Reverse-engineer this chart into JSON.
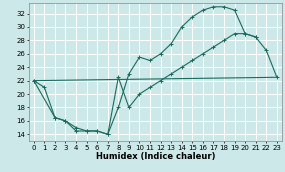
{
  "xlabel": "Humidex (Indice chaleur)",
  "bg_color": "#cce8e8",
  "line_color": "#1a6b5e",
  "grid_color": "#ffffff",
  "xlim": [
    -0.5,
    23.5
  ],
  "ylim": [
    13.0,
    33.5
  ],
  "yticks": [
    14,
    16,
    18,
    20,
    22,
    24,
    26,
    28,
    30,
    32
  ],
  "xticks": [
    0,
    1,
    2,
    3,
    4,
    5,
    6,
    7,
    8,
    9,
    10,
    11,
    12,
    13,
    14,
    15,
    16,
    17,
    18,
    19,
    20,
    21,
    22,
    23
  ],
  "line1_x": [
    0,
    1,
    2,
    3,
    4,
    5,
    6,
    7,
    8,
    9,
    10,
    11,
    12,
    13,
    14,
    15,
    16,
    17,
    18,
    19,
    20,
    21
  ],
  "line1_y": [
    22,
    21,
    16.5,
    16.0,
    14.5,
    14.5,
    14.5,
    14.0,
    18.0,
    23.0,
    25.5,
    25.0,
    26.0,
    27.5,
    30.0,
    31.5,
    32.5,
    33.0,
    33.0,
    32.5,
    29.0,
    28.5
  ],
  "line2_x": [
    0,
    23
  ],
  "line2_y": [
    22.0,
    22.5
  ],
  "line3_x": [
    0,
    2,
    3,
    4,
    5,
    6,
    7,
    8,
    9,
    10,
    11,
    12,
    13,
    14,
    15,
    16,
    17,
    18,
    19,
    20,
    21,
    22,
    23
  ],
  "line3_y": [
    22,
    16.5,
    16.0,
    15.0,
    14.5,
    14.5,
    14.0,
    22.5,
    18.0,
    20.0,
    21.0,
    22.0,
    23.0,
    24.0,
    25.0,
    26.0,
    27.0,
    28.0,
    29.0,
    29.0,
    28.5,
    26.5,
    22.5
  ]
}
